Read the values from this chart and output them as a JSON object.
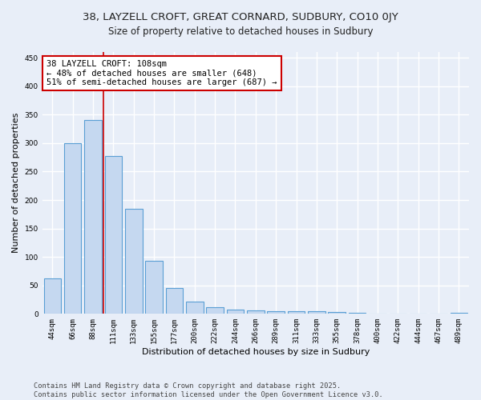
{
  "title": "38, LAYZELL CROFT, GREAT CORNARD, SUDBURY, CO10 0JY",
  "subtitle": "Size of property relative to detached houses in Sudbury",
  "xlabel": "Distribution of detached houses by size in Sudbury",
  "ylabel": "Number of detached properties",
  "categories": [
    "44sqm",
    "66sqm",
    "88sqm",
    "111sqm",
    "133sqm",
    "155sqm",
    "177sqm",
    "200sqm",
    "222sqm",
    "244sqm",
    "266sqm",
    "289sqm",
    "311sqm",
    "333sqm",
    "355sqm",
    "378sqm",
    "400sqm",
    "422sqm",
    "444sqm",
    "467sqm",
    "489sqm"
  ],
  "values": [
    62,
    300,
    340,
    278,
    185,
    93,
    45,
    22,
    12,
    7,
    6,
    5,
    4,
    5,
    3,
    2,
    1,
    0,
    1,
    0,
    2
  ],
  "bar_color": "#c5d8f0",
  "bar_edge_color": "#5a9fd4",
  "bar_linewidth": 0.8,
  "property_line_x": 2.5,
  "property_sqm": 108,
  "annotation_line1": "38 LAYZELL CROFT: 108sqm",
  "annotation_line2": "← 48% of detached houses are smaller (648)",
  "annotation_line3": "51% of semi-detached houses are larger (687) →",
  "annotation_box_color": "#ffffff",
  "annotation_border_color": "#cc0000",
  "line_color": "#cc0000",
  "ylim": [
    0,
    460
  ],
  "yticks": [
    0,
    50,
    100,
    150,
    200,
    250,
    300,
    350,
    400,
    450
  ],
  "background_color": "#e8eef8",
  "grid_color": "#ffffff",
  "footer_line1": "Contains HM Land Registry data © Crown copyright and database right 2025.",
  "footer_line2": "Contains public sector information licensed under the Open Government Licence v3.0.",
  "title_fontsize": 9.5,
  "subtitle_fontsize": 8.5,
  "axis_label_fontsize": 8,
  "tick_fontsize": 6.5,
  "annotation_fontsize": 7.5,
  "footer_fontsize": 6.2
}
